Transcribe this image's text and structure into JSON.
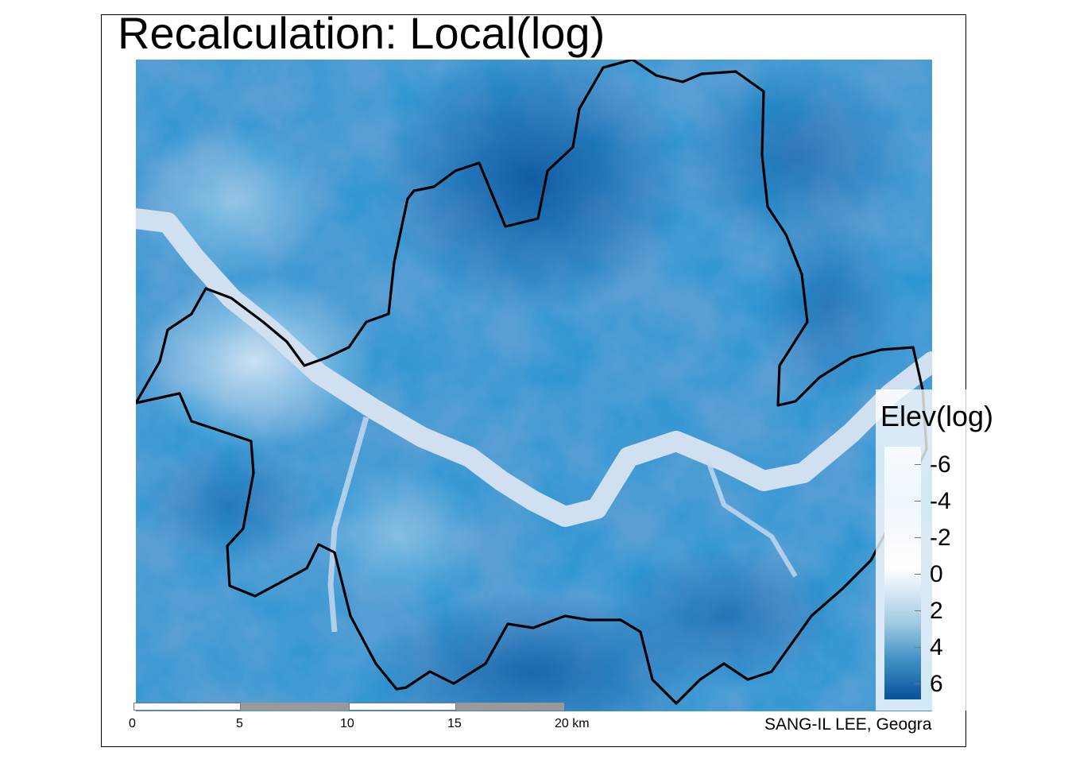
{
  "map": {
    "title": "Recalculation: Local(log)",
    "legend": {
      "title": "Elev(log)",
      "labels": [
        "-6",
        "-4",
        "-2",
        "0",
        "2",
        "4",
        "6"
      ]
    },
    "scalebar": {
      "labels": [
        "0",
        "5",
        "10",
        "15",
        "20 km"
      ],
      "segment_colors": [
        "#ffffff",
        "#999999",
        "#ffffff",
        "#999999"
      ]
    },
    "credit": "SANG-IL LEE, Geogra",
    "colors": {
      "low": "#f7fbff",
      "high": "#08519c",
      "river": "#d0e0f0",
      "boundary": "#000000"
    }
  }
}
